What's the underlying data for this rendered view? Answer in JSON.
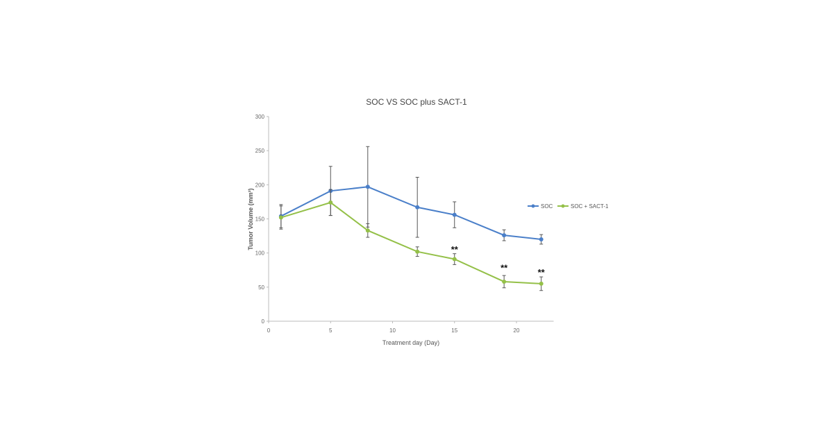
{
  "chart_data": {
    "type": "line",
    "title": "SOC VS SOC plus SACT-1",
    "xlabel": "Treatment day (Day)",
    "ylabel": "Tumor Volume (mm³)",
    "xlim": [
      0,
      23
    ],
    "ylim": [
      0,
      300
    ],
    "xticks": [
      0,
      5,
      10,
      15,
      20
    ],
    "yticks": [
      0,
      50,
      100,
      150,
      200,
      250,
      300
    ],
    "grid": false,
    "legend_position": "right",
    "series": [
      {
        "name": "SOC",
        "color": "#4a7fc9",
        "x": [
          1,
          5,
          8,
          12,
          15,
          19,
          22
        ],
        "y": [
          154,
          191,
          197,
          167,
          156,
          126,
          120
        ],
        "error": [
          17,
          36,
          59,
          44,
          19,
          8,
          7
        ]
      },
      {
        "name": "SOC + SACT-1",
        "color": "#94c048",
        "x": [
          1,
          5,
          8,
          12,
          15,
          19,
          22
        ],
        "y": [
          152,
          174,
          133,
          102,
          91,
          58,
          55
        ],
        "error": [
          17,
          19,
          10,
          7,
          8,
          9,
          10
        ]
      }
    ],
    "annotations": [
      {
        "text": "**",
        "x": 15,
        "y": 107
      },
      {
        "text": "**",
        "x": 19,
        "y": 80
      },
      {
        "text": "**",
        "x": 22,
        "y": 73
      }
    ]
  }
}
